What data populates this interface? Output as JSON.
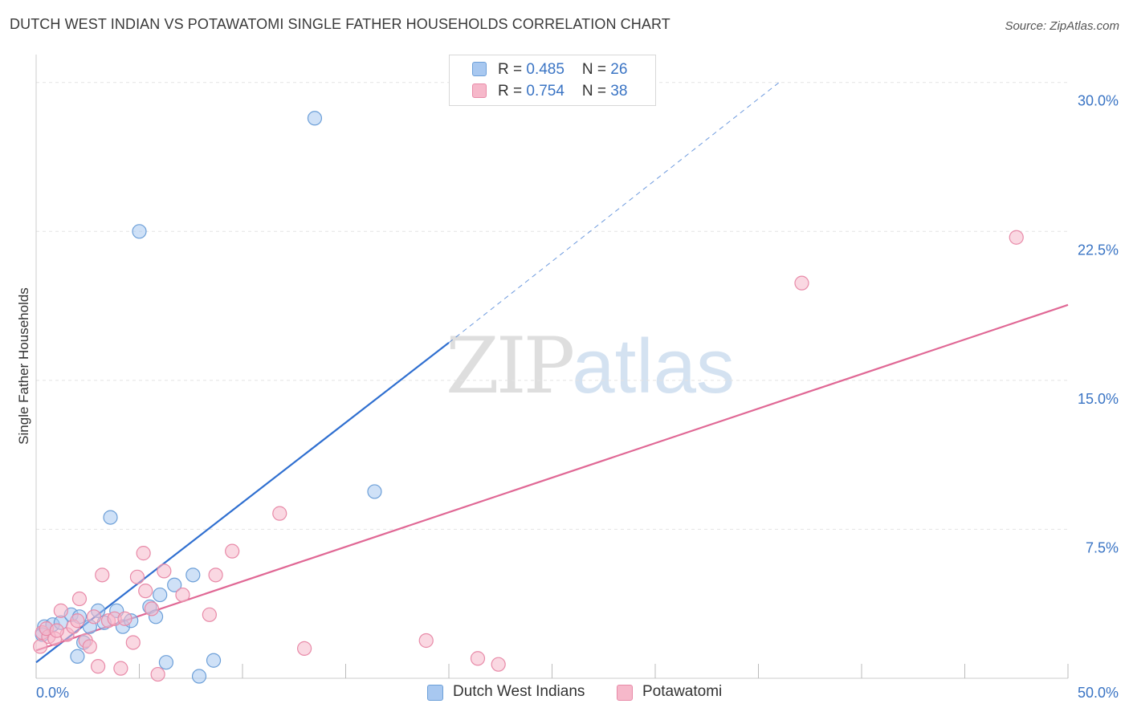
{
  "title": "DUTCH WEST INDIAN VS POTAWATOMI SINGLE FATHER HOUSEHOLDS CORRELATION CHART",
  "source": "Source: ZipAtlas.com",
  "watermark": {
    "zip": "ZIP",
    "atlas": "atlas"
  },
  "colors": {
    "blue_fill": "#a8c8f0",
    "blue_stroke": "#6c9fd8",
    "blue_line": "#2f6fd0",
    "pink_fill": "#f6b8ca",
    "pink_stroke": "#e88aa8",
    "pink_line": "#e06895",
    "tick_label": "#3a74c4",
    "grid": "#e4e4e4"
  },
  "legend": {
    "rows": [
      {
        "series": "blue",
        "r_label": "R = ",
        "r_value": "0.485",
        "n_label": "N = ",
        "n_value": "26"
      },
      {
        "series": "pink",
        "r_label": "R = ",
        "r_value": "0.754",
        "n_label": "N = ",
        "n_value": "38"
      }
    ]
  },
  "bottom_legend": [
    "Dutch West Indians",
    "Potawatomi"
  ],
  "chart_data": {
    "type": "scatter",
    "title": "DUTCH WEST INDIAN VS POTAWATOMI SINGLE FATHER HOUSEHOLDS CORRELATION CHART",
    "xlabel": "",
    "ylabel": "Single Father Households",
    "xlim": [
      0,
      50
    ],
    "ylim": [
      0,
      31
    ],
    "x_tick_labels": [
      "0.0%",
      "50.0%"
    ],
    "y_ticks": [
      7.5,
      15.0,
      22.5,
      30.0
    ],
    "y_tick_labels": [
      "7.5%",
      "15.0%",
      "22.5%",
      "30.0%"
    ],
    "grid": true,
    "series": [
      {
        "name": "Dutch West Indians",
        "color": "blue",
        "points": [
          [
            0.4,
            2.6
          ],
          [
            0.8,
            2.7
          ],
          [
            1.2,
            2.8
          ],
          [
            1.7,
            3.2
          ],
          [
            2.1,
            3.1
          ],
          [
            2.0,
            1.1
          ],
          [
            2.3,
            1.8
          ],
          [
            2.6,
            2.6
          ],
          [
            3.0,
            3.4
          ],
          [
            3.3,
            2.8
          ],
          [
            3.6,
            8.1
          ],
          [
            3.9,
            3.4
          ],
          [
            4.2,
            2.6
          ],
          [
            4.6,
            2.9
          ],
          [
            5.0,
            22.5
          ],
          [
            5.5,
            3.6
          ],
          [
            5.8,
            3.1
          ],
          [
            6.0,
            4.2
          ],
          [
            6.3,
            0.8
          ],
          [
            6.7,
            4.7
          ],
          [
            7.6,
            5.2
          ],
          [
            7.9,
            0.1
          ],
          [
            8.6,
            0.9
          ],
          [
            13.5,
            28.2
          ],
          [
            16.4,
            9.4
          ],
          [
            0.3,
            2.2
          ]
        ],
        "trend": {
          "x": [
            0,
            20
          ],
          "y": [
            0.8,
            16.9
          ],
          "dashed_extension_to": [
            36,
            30.0
          ]
        }
      },
      {
        "name": "Potawatomi",
        "color": "pink",
        "points": [
          [
            0.3,
            2.3
          ],
          [
            0.6,
            2.1
          ],
          [
            0.9,
            2.0
          ],
          [
            1.2,
            3.4
          ],
          [
            1.5,
            2.2
          ],
          [
            1.8,
            2.6
          ],
          [
            2.1,
            4.0
          ],
          [
            2.4,
            1.9
          ],
          [
            2.6,
            1.6
          ],
          [
            2.8,
            3.1
          ],
          [
            3.0,
            0.6
          ],
          [
            3.2,
            5.2
          ],
          [
            3.5,
            2.9
          ],
          [
            3.8,
            3.0
          ],
          [
            4.1,
            0.5
          ],
          [
            4.3,
            3.0
          ],
          [
            4.7,
            1.8
          ],
          [
            4.9,
            5.1
          ],
          [
            5.2,
            6.3
          ],
          [
            5.3,
            4.4
          ],
          [
            5.6,
            3.5
          ],
          [
            5.9,
            0.2
          ],
          [
            6.2,
            5.4
          ],
          [
            7.1,
            4.2
          ],
          [
            8.4,
            3.2
          ],
          [
            8.7,
            5.2
          ],
          [
            9.5,
            6.4
          ],
          [
            11.8,
            8.3
          ],
          [
            13.0,
            1.5
          ],
          [
            18.9,
            1.9
          ],
          [
            21.4,
            1.0
          ],
          [
            22.4,
            0.7
          ],
          [
            37.1,
            19.9
          ],
          [
            47.5,
            22.2
          ],
          [
            0.2,
            1.6
          ],
          [
            0.5,
            2.5
          ],
          [
            1.0,
            2.4
          ],
          [
            2.0,
            2.9
          ]
        ],
        "trend": {
          "x": [
            0,
            50
          ],
          "y": [
            1.4,
            18.8
          ]
        }
      }
    ]
  }
}
